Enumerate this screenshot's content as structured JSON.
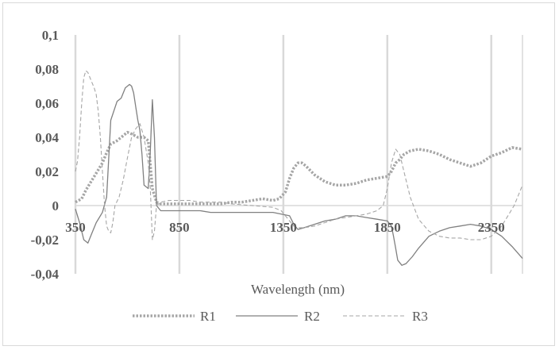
{
  "chart_data": {
    "type": "line",
    "title": "",
    "xlabel": "Wavelength  (nm)",
    "ylabel": "",
    "xlim": [
      350,
      2500
    ],
    "ylim": [
      -0.04,
      0.1
    ],
    "x_ticks": [
      350,
      850,
      1350,
      1850,
      2350
    ],
    "x_tick_labels": [
      "350",
      "850",
      "1350",
      "1850",
      "2350"
    ],
    "y_ticks": [
      0.1,
      0.08,
      0.06,
      0.04,
      0.02,
      0,
      -0.02,
      -0.04
    ],
    "y_tick_labels": [
      "0,1",
      "0,08",
      "0,06",
      "0,04",
      "0,02",
      "0",
      "-0,02",
      "-0,04"
    ],
    "grid": {
      "vertical": true,
      "horizontal": false
    },
    "legend_position": "bottom",
    "colors": {
      "grid": "#d9d9d9",
      "R1": "#a6a6a6",
      "R2": "#808080",
      "R3": "#a6a6a6",
      "text": "#595959"
    },
    "series": [
      {
        "name": "R1",
        "style": "dotted",
        "x": [
          350,
          380,
          400,
          420,
          450,
          480,
          500,
          520,
          550,
          580,
          600,
          620,
          650,
          680,
          700,
          720,
          740,
          760,
          800,
          850,
          900,
          950,
          1000,
          1050,
          1100,
          1150,
          1200,
          1250,
          1300,
          1330,
          1360,
          1380,
          1400,
          1420,
          1440,
          1460,
          1500,
          1550,
          1600,
          1650,
          1700,
          1750,
          1800,
          1850,
          1870,
          1890,
          1910,
          1930,
          1960,
          2000,
          2050,
          2100,
          2150,
          2200,
          2250,
          2300,
          2350,
          2400,
          2450,
          2500
        ],
        "y": [
          0.002,
          0.004,
          0.009,
          0.013,
          0.019,
          0.025,
          0.031,
          0.036,
          0.038,
          0.041,
          0.043,
          0.042,
          0.04,
          0.04,
          0.038,
          0.01,
          0.002,
          0.001,
          0.001,
          0.001,
          0.001,
          0.001,
          0.001,
          0.001,
          0.002,
          0.002,
          0.003,
          0.004,
          0.003,
          0.004,
          0.008,
          0.016,
          0.022,
          0.025,
          0.025,
          0.023,
          0.018,
          0.014,
          0.012,
          0.012,
          0.013,
          0.015,
          0.016,
          0.017,
          0.02,
          0.025,
          0.027,
          0.03,
          0.032,
          0.033,
          0.032,
          0.03,
          0.027,
          0.025,
          0.023,
          0.025,
          0.029,
          0.031,
          0.034,
          0.033
        ]
      },
      {
        "name": "R2",
        "style": "solid",
        "x": [
          350,
          370,
          390,
          410,
          430,
          450,
          480,
          500,
          520,
          550,
          570,
          590,
          610,
          620,
          630,
          640,
          650,
          660,
          670,
          680,
          700,
          710,
          720,
          730,
          740,
          760,
          800,
          850,
          900,
          950,
          1000,
          1100,
          1200,
          1300,
          1340,
          1380,
          1400,
          1420,
          1450,
          1500,
          1550,
          1600,
          1650,
          1700,
          1750,
          1800,
          1850,
          1870,
          1880,
          1890,
          1900,
          1920,
          1940,
          1970,
          2000,
          2050,
          2100,
          2150,
          2200,
          2250,
          2300,
          2350,
          2400,
          2450,
          2500
        ],
        "y": [
          -0.002,
          -0.01,
          -0.02,
          -0.022,
          -0.016,
          -0.01,
          -0.004,
          0.005,
          0.05,
          0.061,
          0.063,
          0.069,
          0.071,
          0.07,
          0.066,
          0.058,
          0.05,
          0.044,
          0.03,
          0.012,
          0.01,
          0.032,
          0.062,
          0.04,
          0.0,
          -0.003,
          -0.003,
          -0.003,
          -0.003,
          -0.003,
          -0.004,
          -0.004,
          -0.004,
          -0.004,
          -0.005,
          -0.006,
          -0.011,
          -0.014,
          -0.013,
          -0.011,
          -0.009,
          -0.008,
          -0.006,
          -0.006,
          -0.007,
          -0.008,
          -0.009,
          -0.012,
          -0.018,
          -0.025,
          -0.032,
          -0.035,
          -0.034,
          -0.03,
          -0.025,
          -0.018,
          -0.015,
          -0.013,
          -0.012,
          -0.011,
          -0.012,
          -0.014,
          -0.018,
          -0.024,
          -0.031
        ]
      },
      {
        "name": "R3",
        "style": "dashed",
        "x": [
          350,
          360,
          370,
          380,
          390,
          400,
          410,
          420,
          430,
          440,
          450,
          460,
          470,
          480,
          490,
          500,
          510,
          520,
          530,
          540,
          560,
          580,
          600,
          620,
          640,
          660,
          680,
          700,
          710,
          720,
          730,
          740,
          760,
          800,
          850,
          900,
          950,
          1000,
          1050,
          1100,
          1200,
          1300,
          1340,
          1380,
          1400,
          1420,
          1450,
          1500,
          1550,
          1600,
          1650,
          1700,
          1750,
          1800,
          1830,
          1850,
          1870,
          1890,
          1910,
          1930,
          1960,
          2000,
          2050,
          2100,
          2150,
          2200,
          2250,
          2300,
          2350,
          2400,
          2420,
          2440,
          2460,
          2480,
          2500
        ],
        "y": [
          0.02,
          0.026,
          0.04,
          0.06,
          0.075,
          0.079,
          0.078,
          0.075,
          0.072,
          0.069,
          0.065,
          0.055,
          0.04,
          0.02,
          0.0,
          -0.012,
          -0.015,
          -0.016,
          -0.01,
          0.0,
          0.005,
          0.015,
          0.028,
          0.04,
          0.045,
          0.048,
          0.04,
          0.025,
          0.01,
          -0.02,
          -0.015,
          0.0,
          0.002,
          0.003,
          0.003,
          0.003,
          0.002,
          0.002,
          0.002,
          0.001,
          0.0,
          -0.001,
          -0.003,
          -0.009,
          -0.012,
          -0.013,
          -0.013,
          -0.012,
          -0.01,
          -0.008,
          -0.007,
          -0.006,
          -0.005,
          -0.003,
          0.0,
          0.01,
          0.025,
          0.033,
          0.03,
          0.02,
          0.005,
          -0.008,
          -0.015,
          -0.018,
          -0.019,
          -0.019,
          -0.02,
          -0.02,
          -0.018,
          -0.012,
          -0.008,
          -0.004,
          0.0,
          0.006,
          0.012
        ]
      }
    ]
  }
}
